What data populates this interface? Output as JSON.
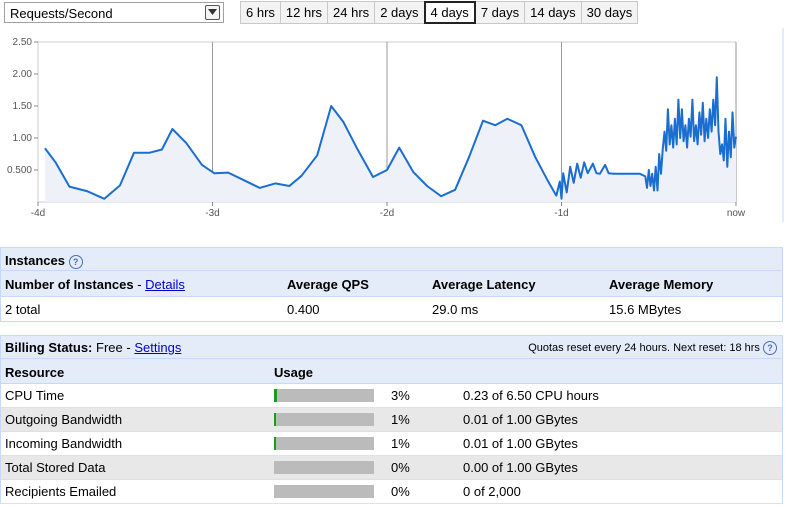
{
  "metric": {
    "selected": "Requests/Second"
  },
  "ranges": [
    "6 hrs",
    "12 hrs",
    "24 hrs",
    "2 days",
    "4 days",
    "7 days",
    "14 days",
    "30 days"
  ],
  "active_range": "4 days",
  "chart_data": {
    "type": "area",
    "title": "",
    "xlabel": "",
    "ylabel": "Requests/Second",
    "x_ticks": [
      "-4d",
      "-3d",
      "-2d",
      "-1d",
      "now"
    ],
    "y_ticks": [
      "0.500",
      "1.00",
      "1.50",
      "2.00",
      "2.50"
    ],
    "ylim": [
      0,
      2.5
    ],
    "xlim": [
      -4,
      0
    ],
    "grid": "vertical lines at day marks",
    "line_color": "#1a6ed0",
    "fill_color": "#eef2f8",
    "series": [
      {
        "values": [
          [
            -3.96,
            0.84
          ],
          [
            -3.9,
            0.62
          ],
          [
            -3.82,
            0.24
          ],
          [
            -3.72,
            0.17
          ],
          [
            -3.62,
            0.05
          ],
          [
            -3.53,
            0.26
          ],
          [
            -3.45,
            0.77
          ],
          [
            -3.36,
            0.77
          ],
          [
            -3.29,
            0.82
          ],
          [
            -3.23,
            1.14
          ],
          [
            -3.15,
            0.92
          ],
          [
            -3.06,
            0.58
          ],
          [
            -2.99,
            0.45
          ],
          [
            -2.91,
            0.46
          ],
          [
            -2.82,
            0.34
          ],
          [
            -2.73,
            0.22
          ],
          [
            -2.64,
            0.29
          ],
          [
            -2.56,
            0.25
          ],
          [
            -2.49,
            0.41
          ],
          [
            -2.4,
            0.73
          ],
          [
            -2.32,
            1.5
          ],
          [
            -2.25,
            1.25
          ],
          [
            -2.17,
            0.83
          ],
          [
            -2.08,
            0.39
          ],
          [
            -2.0,
            0.5
          ],
          [
            -1.93,
            0.85
          ],
          [
            -1.85,
            0.47
          ],
          [
            -1.77,
            0.25
          ],
          [
            -1.69,
            0.09
          ],
          [
            -1.61,
            0.19
          ],
          [
            -1.53,
            0.7
          ],
          [
            -1.45,
            1.27
          ],
          [
            -1.38,
            1.2
          ],
          [
            -1.31,
            1.3
          ],
          [
            -1.23,
            1.2
          ],
          [
            -1.15,
            0.7
          ],
          [
            -1.08,
            0.34
          ],
          [
            -1.03,
            0.1
          ],
          [
            -1.01,
            0.32
          ],
          [
            -1.0,
            0.05
          ],
          [
            -0.99,
            0.45
          ],
          [
            -0.97,
            0.15
          ],
          [
            -0.95,
            0.55
          ],
          [
            -0.93,
            0.3
          ],
          [
            -0.91,
            0.6
          ],
          [
            -0.89,
            0.38
          ],
          [
            -0.87,
            0.62
          ],
          [
            -0.85,
            0.45
          ],
          [
            -0.82,
            0.6
          ],
          [
            -0.8,
            0.45
          ],
          [
            -0.78,
            0.44
          ],
          [
            -0.75,
            0.58
          ],
          [
            -0.73,
            0.45
          ],
          [
            -0.7,
            0.44
          ],
          [
            -0.65,
            0.44
          ],
          [
            -0.6,
            0.44
          ],
          [
            -0.55,
            0.44
          ],
          [
            -0.52,
            0.4
          ],
          [
            -0.51,
            0.22
          ],
          [
            -0.5,
            0.5
          ],
          [
            -0.49,
            0.25
          ],
          [
            -0.48,
            0.44
          ],
          [
            -0.47,
            0.18
          ],
          [
            -0.46,
            0.55
          ],
          [
            -0.45,
            0.18
          ],
          [
            -0.44,
            0.75
          ],
          [
            -0.43,
            0.44
          ],
          [
            -0.42,
            0.82
          ],
          [
            -0.41,
            1.1
          ],
          [
            -0.4,
            0.8
          ],
          [
            -0.39,
            1.45
          ],
          [
            -0.38,
            0.9
          ],
          [
            -0.37,
            1.2
          ],
          [
            -0.36,
            0.85
          ],
          [
            -0.35,
            1.3
          ],
          [
            -0.34,
            0.9
          ],
          [
            -0.33,
            1.6
          ],
          [
            -0.32,
            1.0
          ],
          [
            -0.31,
            1.45
          ],
          [
            -0.3,
            0.95
          ],
          [
            -0.29,
            1.2
          ],
          [
            -0.28,
            0.85
          ],
          [
            -0.27,
            1.3
          ],
          [
            -0.26,
            1.02
          ],
          [
            -0.25,
            1.6
          ],
          [
            -0.24,
            0.95
          ],
          [
            -0.23,
            1.2
          ],
          [
            -0.22,
            0.9
          ],
          [
            -0.21,
            1.4
          ],
          [
            -0.2,
            1.05
          ],
          [
            -0.19,
            1.55
          ],
          [
            -0.18,
            0.95
          ],
          [
            -0.17,
            1.3
          ],
          [
            -0.16,
            1.0
          ],
          [
            -0.15,
            1.45
          ],
          [
            -0.14,
            1.1
          ],
          [
            -0.13,
            1.6
          ],
          [
            -0.12,
            1.2
          ],
          [
            -0.11,
            1.95
          ],
          [
            -0.1,
            1.1
          ],
          [
            -0.09,
            0.75
          ],
          [
            -0.08,
            0.9
          ],
          [
            -0.07,
            0.65
          ],
          [
            -0.06,
            1.3
          ],
          [
            -0.05,
            0.55
          ],
          [
            -0.04,
            1.1
          ],
          [
            -0.03,
            0.7
          ],
          [
            -0.02,
            1.4
          ],
          [
            -0.01,
            0.85
          ],
          [
            0.0,
            1.02
          ]
        ]
      }
    ]
  },
  "instances": {
    "title": "Instances",
    "help": "?",
    "headers": {
      "count": "Number of Instances",
      "details_link": "Details",
      "qps": "Average QPS",
      "latency": "Average Latency",
      "memory": "Average Memory"
    },
    "values": {
      "count": "2 total",
      "qps": "0.400",
      "latency": "29.0 ms",
      "memory": "15.6 MBytes"
    }
  },
  "billing": {
    "label": "Billing Status:",
    "status": "Free",
    "separator": "-",
    "settings_link": "Settings",
    "quota_note": "Quotas reset every 24 hours. Next reset: 18 hrs",
    "help": "?",
    "headers": {
      "resource": "Resource",
      "usage": "Usage"
    },
    "rows": [
      {
        "resource": "CPU Time",
        "percent": "3%",
        "fraction": 0.03,
        "detail": "0.23 of 6.50 CPU hours"
      },
      {
        "resource": "Outgoing Bandwidth",
        "percent": "1%",
        "fraction": 0.01,
        "detail": "0.01 of 1.00 GBytes"
      },
      {
        "resource": "Incoming Bandwidth",
        "percent": "1%",
        "fraction": 0.01,
        "detail": "0.01 of 1.00 GBytes"
      },
      {
        "resource": "Total Stored Data",
        "percent": "0%",
        "fraction": 0,
        "detail": "0.00 of 1.00 GBytes"
      },
      {
        "resource": "Recipients Emailed",
        "percent": "0%",
        "fraction": 0,
        "detail": "0 of 2,000"
      }
    ]
  }
}
